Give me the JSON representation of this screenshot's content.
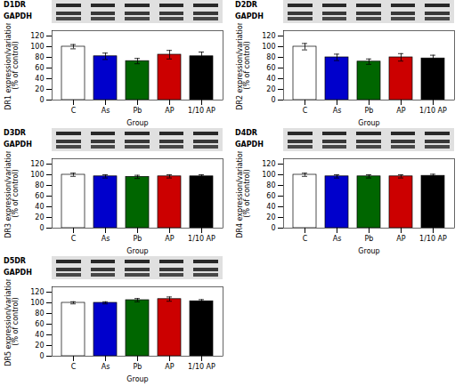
{
  "chart_data": [
    {
      "type": "bar",
      "title": "D1DR",
      "annotations": [
        "GAPDH"
      ],
      "xlabel": "Group",
      "ylabel": "DR1 expression/variation\n(% of control)",
      "categories": [
        "C",
        "As",
        "Pb",
        "AP",
        "1/10 AP"
      ],
      "values": [
        100,
        82,
        73,
        85,
        82
      ],
      "errors": [
        4,
        6,
        5,
        8,
        8
      ],
      "colors": [
        "white",
        "#0000cc",
        "#006600",
        "#cc0000",
        "#000000"
      ],
      "ylim": [
        0,
        130
      ],
      "yticks": [
        0,
        20,
        40,
        60,
        80,
        100,
        120
      ],
      "grid": false
    },
    {
      "type": "bar",
      "title": "D2DR",
      "annotations": [
        "GAPDH"
      ],
      "xlabel": "Group",
      "ylabel": "DR2 expression/variation\n(% of control)",
      "categories": [
        "C",
        "As",
        "Pb",
        "AP",
        "1/10 AP"
      ],
      "values": [
        100,
        80,
        72,
        80,
        78
      ],
      "errors": [
        6,
        6,
        5,
        7,
        6
      ],
      "colors": [
        "white",
        "#0000cc",
        "#006600",
        "#cc0000",
        "#000000"
      ],
      "ylim": [
        0,
        130
      ],
      "yticks": [
        0,
        20,
        40,
        60,
        80,
        100,
        120
      ],
      "grid": false
    },
    {
      "type": "bar",
      "title": "D3DR",
      "annotations": [
        "GAPDH"
      ],
      "xlabel": "Group",
      "ylabel": "DR3 expression/variation\n(% of control)",
      "categories": [
        "C",
        "As",
        "Pb",
        "AP",
        "1/10 AP"
      ],
      "values": [
        100,
        97,
        96,
        97,
        97
      ],
      "errors": [
        3,
        3,
        3,
        3,
        3
      ],
      "colors": [
        "white",
        "#0000cc",
        "#006600",
        "#cc0000",
        "#000000"
      ],
      "ylim": [
        0,
        130
      ],
      "yticks": [
        0,
        20,
        40,
        60,
        80,
        100,
        120
      ],
      "grid": false
    },
    {
      "type": "bar",
      "title": "D4DR",
      "annotations": [
        "GAPDH"
      ],
      "xlabel": "Group",
      "ylabel": "DR4 expression/variation\n(% of control)",
      "categories": [
        "C",
        "As",
        "Pb",
        "AP",
        "1/10 AP"
      ],
      "values": [
        100,
        97,
        97,
        97,
        98
      ],
      "errors": [
        3,
        3,
        3,
        3,
        3
      ],
      "colors": [
        "white",
        "#0000cc",
        "#006600",
        "#cc0000",
        "#000000"
      ],
      "ylim": [
        0,
        130
      ],
      "yticks": [
        0,
        20,
        40,
        60,
        80,
        100,
        120
      ],
      "grid": false
    },
    {
      "type": "bar",
      "title": "D5DR",
      "annotations": [
        "GAPDH"
      ],
      "xlabel": "Group",
      "ylabel": "DR5 expression/variation\n(% of control)",
      "categories": [
        "C",
        "As",
        "Pb",
        "AP",
        "1/10 AP"
      ],
      "values": [
        100,
        100,
        105,
        107,
        103
      ],
      "errors": [
        2,
        2,
        3,
        4,
        3
      ],
      "colors": [
        "white",
        "#0000cc",
        "#006600",
        "#cc0000",
        "#000000"
      ],
      "ylim": [
        0,
        130
      ],
      "yticks": [
        0,
        20,
        40,
        60,
        80,
        100,
        120
      ],
      "grid": false
    }
  ]
}
